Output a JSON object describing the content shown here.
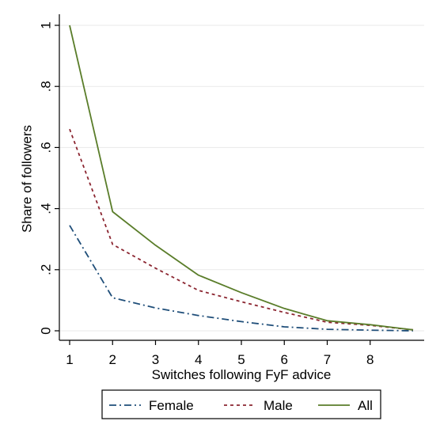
{
  "chart_data": {
    "type": "line",
    "x": [
      1,
      2,
      3,
      4,
      5,
      6,
      7,
      8,
      9
    ],
    "xticks": [
      1,
      2,
      3,
      4,
      5,
      6,
      7,
      8
    ],
    "xticklabels": [
      "1",
      "2",
      "3",
      "4",
      "5",
      "6",
      "7",
      "8"
    ],
    "yticks": [
      0,
      0.2,
      0.4,
      0.6,
      0.8,
      1
    ],
    "yticklabels": [
      "0",
      ".2",
      ".4",
      ".6",
      ".8",
      "1"
    ],
    "xlabel": "Switches following FyF advice",
    "ylabel": "Share of followers",
    "xlim": [
      0.8,
      9.2
    ],
    "ylim": [
      -0.02,
      1.04
    ],
    "grid": true,
    "legend_position": "bottom",
    "series": [
      {
        "name": "Female",
        "color": "#1f4e79",
        "dash": "dash-dot",
        "values": [
          0.345,
          0.108,
          0.075,
          0.05,
          0.03,
          0.013,
          0.005,
          0.002,
          0.0
        ]
      },
      {
        "name": "Male",
        "color": "#8b2530",
        "dash": "dash",
        "values": [
          0.66,
          0.283,
          0.205,
          0.132,
          0.095,
          0.06,
          0.028,
          0.018,
          0.003
        ]
      },
      {
        "name": "All",
        "color": "#5a7d2a",
        "dash": "solid",
        "values": [
          1.0,
          0.39,
          0.28,
          0.182,
          0.125,
          0.073,
          0.033,
          0.02,
          0.003
        ]
      }
    ]
  }
}
